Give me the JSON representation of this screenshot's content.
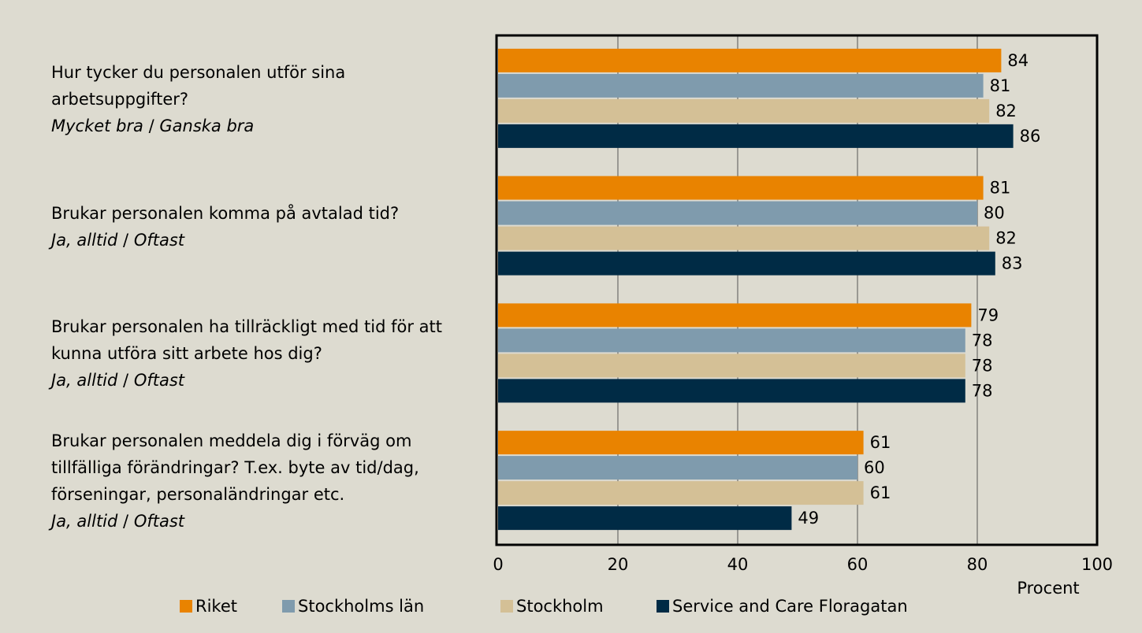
{
  "chart_data": {
    "type": "barh",
    "categories": [
      "Hur tycker du personalen utför sina arbetsuppgifter?",
      "Brukar personalen komma på avtalad tid?",
      "Brukar personalen ha tillräckligt med tid för att kunna utföra sitt arbete hos dig?",
      "Brukar personalen meddela dig i förväg om tillfälliga förändringar? T.ex. byte av tid/dag, förseningar, personaländringar etc."
    ],
    "category_notes": [
      [
        "Mycket bra",
        "/",
        "Ganska bra"
      ],
      [
        "Ja, alltid",
        "/",
        "Oftast"
      ],
      [
        "Ja, alltid",
        "/",
        "Oftast"
      ],
      [
        "Ja, alltid",
        "/",
        "Oftast"
      ]
    ],
    "series": [
      {
        "name": "Riket",
        "color": "#e98300",
        "values": [
          84,
          81,
          79,
          61
        ]
      },
      {
        "name": "Stockholms län",
        "color": "#7f9bad",
        "values": [
          81,
          80,
          78,
          60
        ]
      },
      {
        "name": "Stockholm",
        "color": "#d4c096",
        "values": [
          82,
          82,
          78,
          61
        ]
      },
      {
        "name": "Service and Care Floragatan",
        "color": "#002b45",
        "values": [
          86,
          83,
          78,
          49
        ]
      }
    ],
    "x_label": "Procent",
    "xlim": [
      0,
      100
    ],
    "xticks": [
      0,
      20,
      40,
      60,
      80,
      100
    ],
    "grid": true,
    "legend": "bottom"
  }
}
